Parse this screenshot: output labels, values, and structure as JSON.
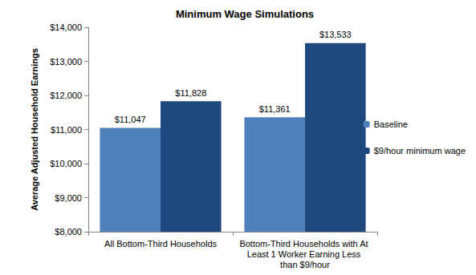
{
  "chart_data": {
    "type": "bar",
    "title": "Minimum Wage Simulations",
    "y_label": "Average Adjusted Household Earnings",
    "categories": [
      "All Bottom-Third Households",
      "Bottom-Third Households with At Least 1 Worker Earning Less than $9/hour"
    ],
    "series": [
      {
        "name": "Baseline",
        "color": "#4f81bd",
        "values": [
          11047,
          11361
        ],
        "value_labels": [
          "$11,047",
          "$11,361"
        ]
      },
      {
        "name": "$9/hour minimum wage",
        "color": "#1f497d",
        "values": [
          11828,
          13533
        ],
        "value_labels": [
          "$11,828",
          "$13,533"
        ]
      }
    ],
    "ylim": [
      8000,
      14000
    ],
    "yticks": [
      {
        "value": 8000,
        "label": "$8,000"
      },
      {
        "value": 9000,
        "label": "$9,000"
      },
      {
        "value": 10000,
        "label": "$10,000"
      },
      {
        "value": 11000,
        "label": "$11,000"
      },
      {
        "value": 12000,
        "label": "$12,000"
      },
      {
        "value": 13000,
        "label": "$13,000"
      },
      {
        "value": 14000,
        "label": "$14,000"
      }
    ],
    "grid": false,
    "legend": "right",
    "data_labels": true
  }
}
